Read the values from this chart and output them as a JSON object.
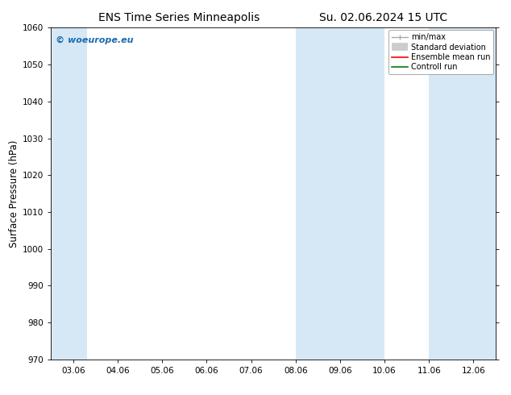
{
  "title_left": "ENS Time Series Minneapolis",
  "title_right": "Su. 02.06.2024 15 UTC",
  "ylabel": "Surface Pressure (hPa)",
  "ylim": [
    970,
    1060
  ],
  "yticks": [
    970,
    980,
    990,
    1000,
    1010,
    1020,
    1030,
    1040,
    1050,
    1060
  ],
  "xtick_labels": [
    "03.06",
    "04.06",
    "05.06",
    "06.06",
    "07.06",
    "08.06",
    "09.06",
    "10.06",
    "11.06",
    "12.06"
  ],
  "xtick_positions": [
    0,
    1,
    2,
    3,
    4,
    5,
    6,
    7,
    8,
    9
  ],
  "xlim": [
    -0.5,
    9.5
  ],
  "shaded_bands": [
    {
      "x_start": -0.5,
      "x_end": 0.3
    },
    {
      "x_start": 5.0,
      "x_end": 7.0
    },
    {
      "x_start": 8.0,
      "x_end": 9.5
    }
  ],
  "shaded_color": "#d6e8f5",
  "watermark_text": "© woeurope.eu",
  "watermark_color": "#1a6ab0",
  "legend_labels": [
    "min/max",
    "Standard deviation",
    "Ensemble mean run",
    "Controll run"
  ],
  "legend_line_colors": [
    "#aaaaaa",
    "#cccccc",
    "#ff0000",
    "#008000"
  ],
  "bg_color": "#ffffff",
  "title_fontsize": 10,
  "tick_fontsize": 7.5,
  "ylabel_fontsize": 8.5,
  "legend_fontsize": 7
}
